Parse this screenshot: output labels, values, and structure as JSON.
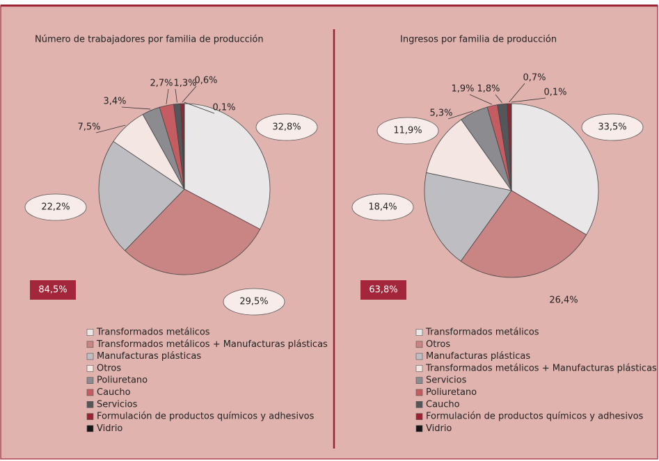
{
  "chart_data": [
    {
      "type": "pie",
      "title": "Número de trabajadores por familia de producción",
      "categories": [
        "Transformados metálicos",
        "Transformados metálicos + Manufacturas plásticas",
        "Manufacturas plásticas",
        "Otros",
        "Poliuretano",
        "Caucho",
        "Servicios",
        "Formulación de productos químicos y adhesivos",
        "Vidrio"
      ],
      "values": [
        32.8,
        29.5,
        22.2,
        7.5,
        3.4,
        2.7,
        1.3,
        0.6,
        0.1
      ],
      "value_labels": [
        "32,8%",
        "29,5%",
        "22,2%",
        "7,5%",
        "3,4%",
        "2,7%",
        "1,3%",
        "0,6%",
        "0,1%"
      ],
      "colors": [
        "#e9e7e8",
        "#c98484",
        "#bdbdc2",
        "#f4e6e2",
        "#8b8b90",
        "#c45c62",
        "#55565a",
        "#9b2232",
        "#151515"
      ],
      "annotation": "84,5%"
    },
    {
      "type": "pie",
      "title": "Ingresos por familia de producción",
      "categories": [
        "Transformados metálicos",
        "Otros",
        "Manufacturas plásticas",
        "Transformados metálicos + Manufacturas plásticas",
        "Servicios",
        "Poliuretano",
        "Caucho",
        "Formulación de productos químicos y adhesivos",
        "Vidrio"
      ],
      "values": [
        33.5,
        26.4,
        18.4,
        11.9,
        5.3,
        1.9,
        1.8,
        0.7,
        0.1
      ],
      "value_labels": [
        "33,5%",
        "26,4%",
        "18,4%",
        "11,9%",
        "5,3%",
        "1,9%",
        "1,8%",
        "0,7%",
        "0,1%"
      ],
      "colors": [
        "#e9e7e8",
        "#c98484",
        "#bdbdc2",
        "#f4e6e2",
        "#8b8b90",
        "#c45c62",
        "#55565a",
        "#9b2232",
        "#151515"
      ],
      "annotation": "63,8%"
    }
  ]
}
